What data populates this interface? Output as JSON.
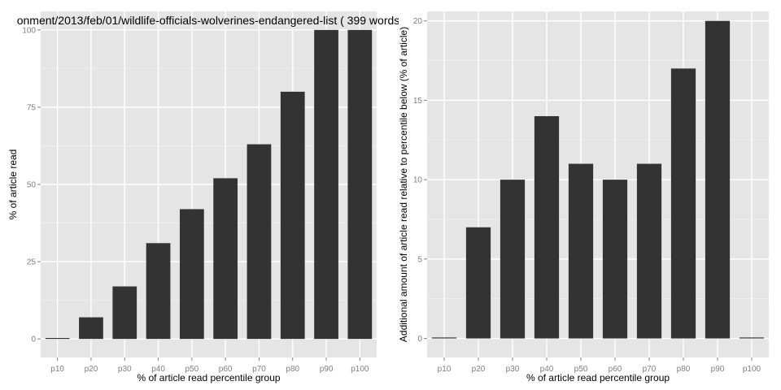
{
  "chart_data": [
    {
      "type": "bar",
      "title": "onment/2013/feb/01/wildlife-officials-wolverines-endangered-list ( 399 words",
      "xlabel": "% of article read percentile group",
      "ylabel": "% of article read",
      "categories": [
        "p10",
        "p20",
        "p30",
        "p40",
        "p50",
        "p60",
        "p70",
        "p80",
        "p90",
        "p100"
      ],
      "values": [
        0,
        7,
        17,
        31,
        42,
        52,
        63,
        80,
        100,
        100
      ],
      "ylim": [
        -6,
        106
      ],
      "yticks": [
        0,
        25,
        50,
        75,
        100
      ],
      "ytick_labels": [
        "0",
        "25",
        "50",
        "75",
        "100"
      ],
      "grid": true,
      "bar_color": "#333333",
      "panel_color": "#e5e5e5"
    },
    {
      "type": "bar",
      "title": "",
      "xlabel": "% of article read percentile group",
      "ylabel": "Additional amount of article read relative to percentile below (% of article)",
      "categories": [
        "p10",
        "p20",
        "p30",
        "p40",
        "p50",
        "p60",
        "p70",
        "p80",
        "p90",
        "p100"
      ],
      "values": [
        0,
        7,
        10,
        14,
        11,
        10,
        11,
        17,
        20,
        0
      ],
      "ylim": [
        -1.2,
        20.6
      ],
      "yticks": [
        0,
        5,
        10,
        15,
        20
      ],
      "ytick_labels": [
        "0",
        "5",
        "10",
        "15",
        "20"
      ],
      "grid": true,
      "bar_color": "#333333",
      "panel_color": "#e5e5e5"
    }
  ]
}
